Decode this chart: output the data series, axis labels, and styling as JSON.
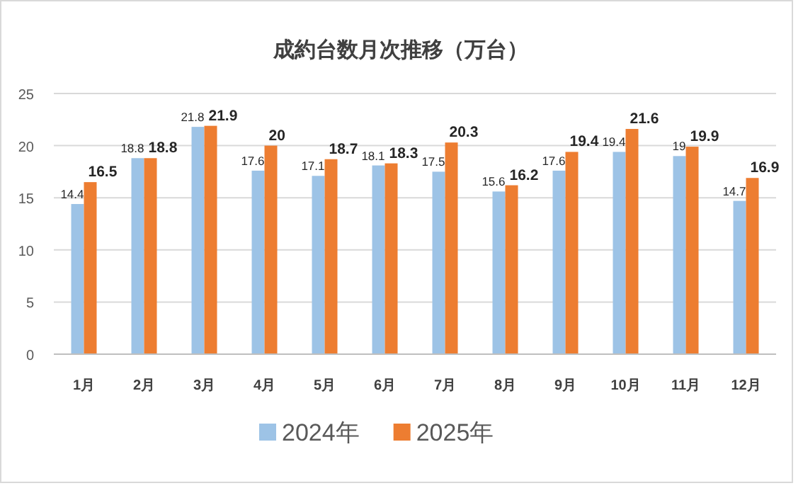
{
  "chart_data": {
    "type": "bar",
    "title": "成約台数月次推移（万台）",
    "categories": [
      "1月",
      "2月",
      "3月",
      "4月",
      "5月",
      "6月",
      "7月",
      "8月",
      "9月",
      "10月",
      "11月",
      "12月"
    ],
    "series": [
      {
        "name": "2024年",
        "color": "#9dc3e6",
        "values": [
          14.4,
          18.8,
          21.8,
          17.6,
          17.1,
          18.1,
          17.5,
          15.6,
          17.6,
          19.4,
          19,
          14.7
        ]
      },
      {
        "name": "2025年",
        "color": "#ed7d31",
        "values": [
          16.5,
          18.8,
          21.9,
          20,
          18.7,
          18.3,
          20.3,
          16.2,
          19.4,
          21.6,
          19.9,
          16.9
        ]
      }
    ],
    "ylim": [
      0,
      25
    ],
    "yticks": [
      0,
      5,
      10,
      15,
      20,
      25
    ],
    "grid": "y",
    "legend": "bottom",
    "data_labels": true
  }
}
